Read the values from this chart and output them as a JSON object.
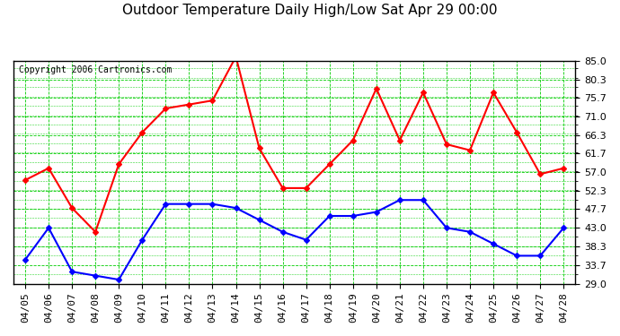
{
  "title": "Outdoor Temperature Daily High/Low Sat Apr 29 00:00",
  "copyright": "Copyright 2006 Cartronics.com",
  "dates": [
    "04/05",
    "04/06",
    "04/07",
    "04/08",
    "04/09",
    "04/10",
    "04/11",
    "04/12",
    "04/13",
    "04/14",
    "04/15",
    "04/16",
    "04/17",
    "04/18",
    "04/19",
    "04/20",
    "04/21",
    "04/22",
    "04/23",
    "04/24",
    "04/25",
    "04/26",
    "04/27",
    "04/28"
  ],
  "high": [
    55.0,
    58.0,
    48.0,
    42.0,
    59.0,
    67.0,
    73.0,
    74.0,
    75.0,
    86.0,
    63.0,
    53.0,
    53.0,
    59.0,
    65.0,
    78.0,
    65.0,
    77.0,
    64.0,
    62.5,
    77.0,
    67.0,
    56.5,
    58.0
  ],
  "low": [
    35.0,
    43.0,
    32.0,
    31.0,
    30.0,
    40.0,
    49.0,
    49.0,
    49.0,
    48.0,
    45.0,
    42.0,
    40.0,
    46.0,
    46.0,
    47.0,
    50.0,
    50.0,
    43.0,
    42.0,
    39.0,
    36.0,
    36.0,
    43.0
  ],
  "high_color": "#ff0000",
  "low_color": "#0000ff",
  "bg_color": "#ffffff",
  "plot_bg_color": "#ffffff",
  "grid_major_color": "#00cc00",
  "grid_minor_color": "#00cc00",
  "yticks": [
    29.0,
    33.7,
    38.3,
    43.0,
    47.7,
    52.3,
    57.0,
    61.7,
    66.3,
    71.0,
    75.7,
    80.3,
    85.0
  ],
  "ylim": [
    29.0,
    85.0
  ],
  "marker": "D",
  "markersize": 3,
  "linewidth": 1.5,
  "title_fontsize": 11,
  "tick_fontsize": 8,
  "copyright_fontsize": 7
}
